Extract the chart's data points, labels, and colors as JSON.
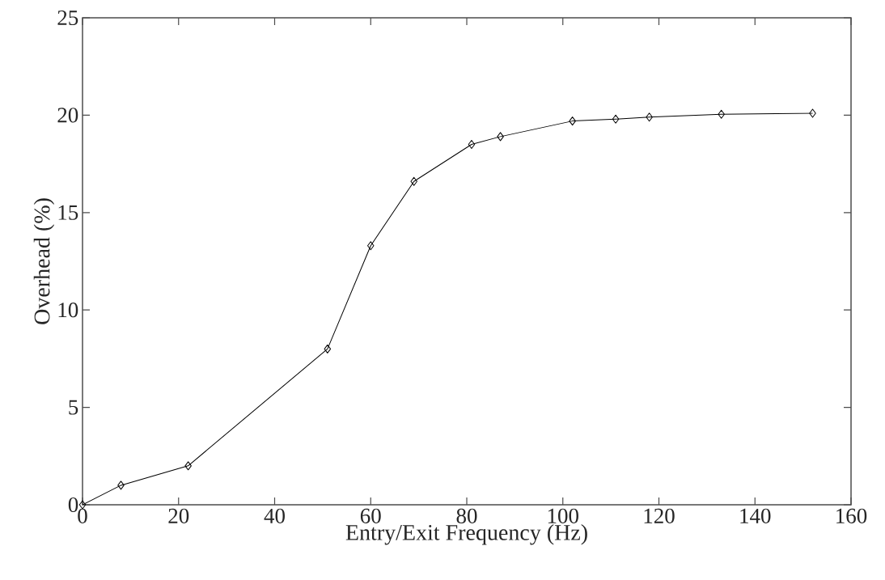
{
  "chart_data": {
    "type": "line",
    "xlabel": "Entry/Exit Frequency (Hz)",
    "ylabel": "Overhead (%)",
    "x": [
      0,
      8,
      22,
      51,
      60,
      69,
      81,
      87,
      102,
      111,
      118,
      133,
      152
    ],
    "values": [
      0,
      1,
      2,
      8,
      13.3,
      16.6,
      18.5,
      18.9,
      19.7,
      19.8,
      19.9,
      20.05,
      20.1
    ],
    "color": "#000000",
    "marker": "diamond",
    "line_style": "solid",
    "xlim": [
      0,
      160
    ],
    "ylim": [
      0,
      25
    ],
    "xticks": [
      0,
      20,
      40,
      60,
      80,
      100,
      120,
      140,
      160
    ],
    "yticks": [
      0,
      5,
      10,
      15,
      20,
      25
    ]
  }
}
